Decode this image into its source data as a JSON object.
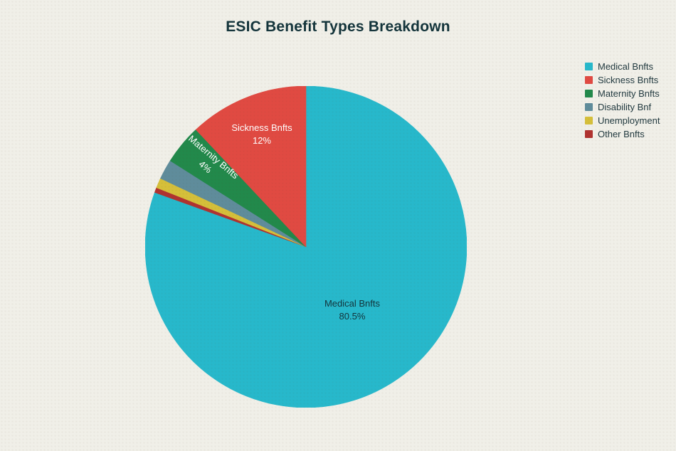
{
  "chart_data": {
    "type": "pie",
    "title": "ESIC Benefit Types Breakdown",
    "labels": [
      "Medical Bnfts",
      "Sickness Bnfts",
      "Maternity Bnfts",
      "Disability Bnf",
      "Unemployment",
      "Other Bnfts"
    ],
    "values": [
      80.5,
      12,
      4,
      2,
      1,
      0.5
    ],
    "colors": [
      "#27b8cb",
      "#e04a42",
      "#22894b",
      "#5f8c9b",
      "#d5bf3a",
      "#b03330"
    ],
    "start_angle": "top",
    "layout": "largest slice clockwise from 12 o'clock, remaining slices counterclockwise",
    "legend_position": "right",
    "inside_labels": [
      {
        "slice": "Sickness Bnfts",
        "line1": "Sickness Bnfts",
        "line2": "12%"
      },
      {
        "slice": "Maternity Bnfts",
        "line1": "Maternity Bnfts",
        "line2": "4%"
      },
      {
        "slice": "Medical Bnfts",
        "line1": "Medical Bnfts",
        "line2": "80.5%"
      }
    ]
  },
  "colors": {
    "background": "#f0efe8",
    "title_text": "#13343b",
    "legend_text": "#223a40"
  }
}
